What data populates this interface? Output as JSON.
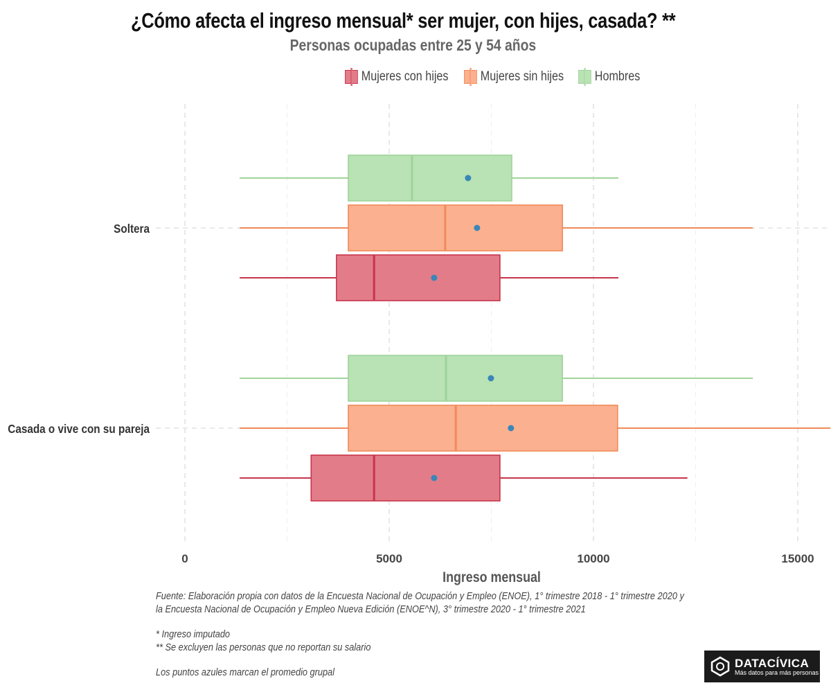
{
  "title": "¿Cómo afecta el ingreso mensual* ser mujer, con hijes, casada? **",
  "subtitle": "Personas ocupadas entre 25 y 54 años",
  "footnotes": {
    "source_1": "Fuente: Elaboración propia con datos de la Encuesta Nacional de Ocupación y Empleo (ENOE), 1° trimestre 2018 - 1° trimestre 2020 y",
    "source_2": "la Encuesta Nacional de Ocupación y Empleo Nueva Edición (ENOE^N), 3° trimestre 2020 - 1° trimestre 2021",
    "note_1": "* Ingreso imputado",
    "note_2": " ** Se excluyen las personas que no reportan su salario",
    "note_3": " Los puntos azules marcan el promedio grupal"
  },
  "logo": {
    "name": "DATACÍVICA",
    "tagline": "Más datos para más personas"
  },
  "chart_data": {
    "type": "boxplot",
    "orientation": "horizontal",
    "title": "¿Cómo afecta el ingreso mensual* ser mujer, con hijes, casada? **",
    "xlabel": "Ingreso mensual",
    "ylabel": "",
    "xlim": [
      0,
      15800
    ],
    "x_ticks": [
      0,
      5000,
      10000,
      15000
    ],
    "x_tick_labels": [
      "0",
      "5000",
      "10000",
      "15000"
    ],
    "categories": [
      "Soltera",
      "Casada o vive con su pareja"
    ],
    "legend_position": "top",
    "grid": true,
    "series": [
      {
        "name": "Mujeres con hijes",
        "fill": "#e27c89",
        "stroke": "#c8344a",
        "boxes": [
          {
            "category": "Soltera",
            "whisker_low": 1340,
            "q1": 3710,
            "median": 4630,
            "q3": 7710,
            "whisker_high": 10610,
            "mean": 6100
          },
          {
            "category": "Casada o vive con su pareja",
            "whisker_low": 1340,
            "q1": 3090,
            "median": 4630,
            "q3": 7710,
            "whisker_high": 12300,
            "mean": 6100
          }
        ]
      },
      {
        "name": "Mujeres sin hijes",
        "fill": "#fbb08f",
        "stroke": "#f08a5a",
        "boxes": [
          {
            "category": "Soltera",
            "whisker_low": 1340,
            "q1": 4000,
            "median": 6370,
            "q3": 9240,
            "whisker_high": 13900,
            "mean": 7150
          },
          {
            "category": "Casada o vive con su pareja",
            "whisker_low": 1340,
            "q1": 4000,
            "median": 6630,
            "q3": 10590,
            "whisker_high": 15800,
            "mean": 7980
          }
        ]
      },
      {
        "name": "Hombres",
        "fill": "#b9e2b5",
        "stroke": "#9fd49a",
        "boxes": [
          {
            "category": "Soltera",
            "whisker_low": 1340,
            "q1": 4000,
            "median": 5560,
            "q3": 8000,
            "whisker_high": 10610,
            "mean": 6930
          },
          {
            "category": "Casada o vive con su pareja",
            "whisker_low": 1340,
            "q1": 4000,
            "median": 6390,
            "q3": 9240,
            "whisker_high": 13900,
            "mean": 7490
          }
        ]
      }
    ],
    "mean_color": "#3a86b8"
  }
}
